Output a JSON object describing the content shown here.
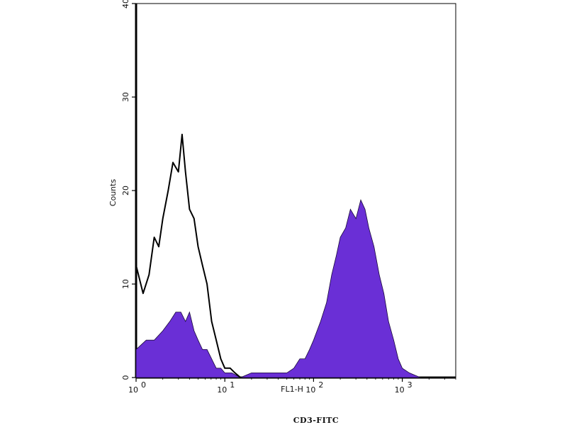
{
  "chart_data": {
    "type": "area",
    "x_scale": "log",
    "xlim": [
      1,
      4000
    ],
    "ylim": [
      0,
      40
    ],
    "xlabel": "FL1-H",
    "ylabel": "Counts",
    "caption": "CD3-FITC",
    "x_ticks": [
      {
        "value": 1,
        "base": "10",
        "exp": "0"
      },
      {
        "value": 10,
        "base": "10",
        "exp": "1"
      },
      {
        "value": 100,
        "base": "10",
        "exp": "2"
      },
      {
        "value": 1000,
        "base": "10",
        "exp": "3"
      }
    ],
    "y_ticks": [
      {
        "value": 0,
        "label": "0"
      },
      {
        "value": 10,
        "label": "10"
      },
      {
        "value": 20,
        "label": "20"
      },
      {
        "value": 30,
        "label": "30"
      },
      {
        "value": 40,
        "label": "40"
      }
    ],
    "grid": false,
    "colors": {
      "filled": "#6a2fd6",
      "outline": "#000000"
    },
    "series": [
      {
        "style": "outline",
        "x": [
          1.0,
          1.2,
          1.4,
          1.6,
          1.8,
          2.0,
          2.3,
          2.6,
          3.0,
          3.3,
          3.6,
          4.0,
          4.5,
          5.0,
          5.6,
          6.3,
          7.1,
          8.0,
          9.0,
          10.0,
          11.5,
          13.0,
          15.0
        ],
        "y": [
          12,
          9,
          11,
          15,
          14,
          17,
          20,
          23,
          22,
          26,
          22,
          18,
          17,
          14,
          12,
          10,
          6,
          4,
          2,
          1,
          1,
          0.5,
          0
        ]
      },
      {
        "style": "filled",
        "x": [
          1.0,
          1.3,
          1.6,
          2.0,
          2.4,
          2.8,
          3.2,
          3.6,
          4.0,
          4.5,
          5.0,
          5.6,
          6.3,
          7.1,
          8.0,
          9.0,
          10.0,
          12.0,
          15.0,
          20.0,
          25.0,
          30.0,
          40.0,
          50.0,
          60.0,
          70.0,
          80.0,
          90.0,
          100.0,
          120.0,
          140.0,
          160.0,
          180.0,
          200.0,
          230.0,
          260.0,
          300.0,
          340.0,
          380.0,
          420.0,
          480.0,
          550.0,
          620.0,
          700.0,
          800.0,
          900.0,
          1000.0,
          1200.0,
          1600.0
        ],
        "y": [
          3,
          4,
          4,
          5,
          6,
          7,
          7,
          6,
          7,
          5,
          4,
          3,
          3,
          2,
          1,
          1,
          0.5,
          0.5,
          0,
          0.5,
          0.5,
          0.5,
          0.5,
          0.5,
          1,
          2,
          2,
          3,
          4,
          6,
          8,
          11,
          13,
          15,
          16,
          18,
          17,
          19,
          18,
          16,
          14,
          11,
          9,
          6,
          4,
          2,
          1,
          0.5,
          0
        ]
      }
    ]
  }
}
